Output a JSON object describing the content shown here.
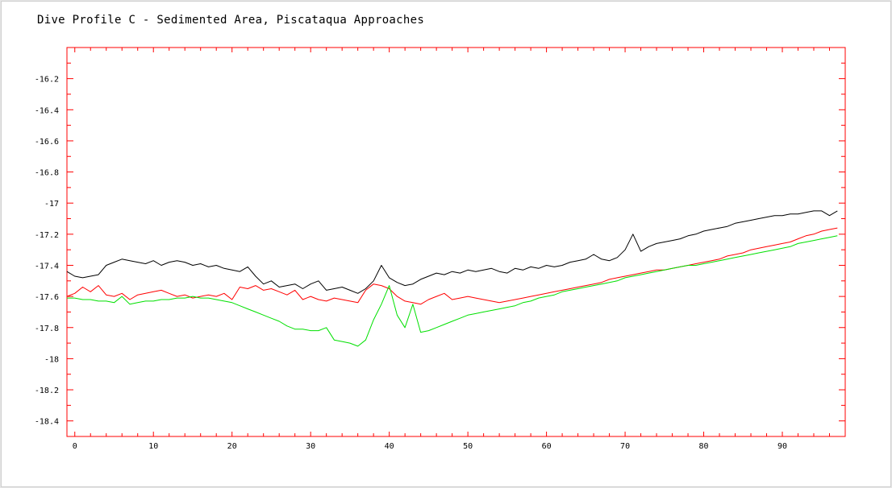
{
  "chart_data": {
    "type": "line",
    "title": "Dive Profile C - Sedimented Area, Piscataqua Approaches",
    "xlabel": "",
    "ylabel": "",
    "xlim": [
      -1,
      98
    ],
    "ylim": [
      -18.5,
      -16.0
    ],
    "x_ticks": [
      0,
      10,
      20,
      30,
      40,
      50,
      60,
      70,
      80,
      90
    ],
    "y_ticks": [
      -16.2,
      -16.4,
      -16.6,
      -16.8,
      -17,
      -17.2,
      -17.4,
      -17.6,
      -17.8,
      -18,
      -18.2,
      -18.4
    ],
    "x_tick_labels": [
      "0",
      "10",
      "20",
      "30",
      "40",
      "50",
      "60",
      "70",
      "80",
      "90"
    ],
    "y_tick_labels": [
      "-16.2",
      "-16.4",
      "-16.6",
      "-16.8",
      "-17",
      "-17.2",
      "-17.4",
      "-17.6",
      "-17.8",
      "-18",
      "-18.2",
      "-18.4"
    ],
    "grid": false,
    "series": [
      {
        "color": "#000000",
        "x": [
          -1,
          0,
          1,
          2,
          3,
          4,
          5,
          6,
          7,
          8,
          9,
          10,
          11,
          12,
          13,
          14,
          15,
          16,
          17,
          18,
          19,
          20,
          21,
          22,
          23,
          24,
          25,
          26,
          27,
          28,
          29,
          30,
          31,
          32,
          33,
          34,
          35,
          36,
          37,
          38,
          39,
          40,
          41,
          42,
          43,
          44,
          45,
          46,
          47,
          48,
          49,
          50,
          51,
          52,
          53,
          54,
          55,
          56,
          57,
          58,
          59,
          60,
          61,
          62,
          63,
          64,
          65,
          66,
          67,
          68,
          69,
          70,
          71,
          72,
          73,
          74,
          75,
          76,
          77,
          78,
          79,
          80,
          81,
          82,
          83,
          84,
          85,
          86,
          87,
          88,
          89,
          90,
          91,
          92,
          93,
          94,
          95,
          96,
          97
        ],
        "values": [
          -17.44,
          -17.47,
          -17.48,
          -17.47,
          -17.46,
          -17.4,
          -17.38,
          -17.36,
          -17.37,
          -17.38,
          -17.39,
          -17.37,
          -17.4,
          -17.38,
          -17.37,
          -17.38,
          -17.4,
          -17.39,
          -17.41,
          -17.4,
          -17.42,
          -17.43,
          -17.44,
          -17.41,
          -17.47,
          -17.52,
          -17.5,
          -17.54,
          -17.53,
          -17.52,
          -17.55,
          -17.52,
          -17.5,
          -17.56,
          -17.55,
          -17.54,
          -17.56,
          -17.58,
          -17.55,
          -17.5,
          -17.4,
          -17.48,
          -17.51,
          -17.53,
          -17.52,
          -17.49,
          -17.47,
          -17.45,
          -17.46,
          -17.44,
          -17.45,
          -17.43,
          -17.44,
          -17.43,
          -17.42,
          -17.44,
          -17.45,
          -17.42,
          -17.43,
          -17.41,
          -17.42,
          -17.4,
          -17.41,
          -17.4,
          -17.38,
          -17.37,
          -17.36,
          -17.33,
          -17.36,
          -17.37,
          -17.35,
          -17.3,
          -17.2,
          -17.31,
          -17.28,
          -17.26,
          -17.25,
          -17.24,
          -17.23,
          -17.21,
          -17.2,
          -17.18,
          -17.17,
          -17.16,
          -17.15,
          -17.13,
          -17.12,
          -17.11,
          -17.1,
          -17.09,
          -17.08,
          -17.08,
          -17.07,
          -17.07,
          -17.06,
          -17.05,
          -17.05,
          -17.08,
          -17.05
        ]
      },
      {
        "color": "#ff0000",
        "x": [
          -1,
          0,
          1,
          2,
          3,
          4,
          5,
          6,
          7,
          8,
          9,
          10,
          11,
          12,
          13,
          14,
          15,
          16,
          17,
          18,
          19,
          20,
          21,
          22,
          23,
          24,
          25,
          26,
          27,
          28,
          29,
          30,
          31,
          32,
          33,
          34,
          35,
          36,
          37,
          38,
          39,
          40,
          41,
          42,
          43,
          44,
          45,
          46,
          47,
          48,
          49,
          50,
          51,
          52,
          53,
          54,
          55,
          56,
          57,
          58,
          59,
          60,
          61,
          62,
          63,
          64,
          65,
          66,
          67,
          68,
          69,
          70,
          71,
          72,
          73,
          74,
          75,
          76,
          77,
          78,
          79,
          80,
          81,
          82,
          83,
          84,
          85,
          86,
          87,
          88,
          89,
          90,
          91,
          92,
          93,
          94,
          95,
          96,
          97
        ],
        "values": [
          -17.6,
          -17.58,
          -17.54,
          -17.57,
          -17.53,
          -17.59,
          -17.6,
          -17.58,
          -17.62,
          -17.59,
          -17.58,
          -17.57,
          -17.56,
          -17.58,
          -17.6,
          -17.59,
          -17.61,
          -17.6,
          -17.59,
          -17.6,
          -17.58,
          -17.62,
          -17.54,
          -17.55,
          -17.53,
          -17.56,
          -17.55,
          -17.57,
          -17.59,
          -17.56,
          -17.62,
          -17.6,
          -17.62,
          -17.63,
          -17.61,
          -17.62,
          -17.63,
          -17.64,
          -17.56,
          -17.52,
          -17.53,
          -17.55,
          -17.6,
          -17.63,
          -17.64,
          -17.65,
          -17.62,
          -17.6,
          -17.58,
          -17.62,
          -17.61,
          -17.6,
          -17.61,
          -17.62,
          -17.63,
          -17.64,
          -17.63,
          -17.62,
          -17.61,
          -17.6,
          -17.59,
          -17.58,
          -17.57,
          -17.56,
          -17.55,
          -17.54,
          -17.53,
          -17.52,
          -17.51,
          -17.49,
          -17.48,
          -17.47,
          -17.46,
          -17.45,
          -17.44,
          -17.43,
          -17.43,
          -17.42,
          -17.41,
          -17.4,
          -17.39,
          -17.38,
          -17.37,
          -17.36,
          -17.34,
          -17.33,
          -17.32,
          -17.3,
          -17.29,
          -17.28,
          -17.27,
          -17.26,
          -17.25,
          -17.23,
          -17.21,
          -17.2,
          -17.18,
          -17.17,
          -17.16
        ]
      },
      {
        "color": "#00e000",
        "x": [
          -1,
          0,
          1,
          2,
          3,
          4,
          5,
          6,
          7,
          8,
          9,
          10,
          11,
          12,
          13,
          14,
          15,
          16,
          17,
          18,
          19,
          20,
          21,
          22,
          23,
          24,
          25,
          26,
          27,
          28,
          29,
          30,
          31,
          32,
          33,
          34,
          35,
          36,
          37,
          38,
          39,
          40,
          41,
          42,
          43,
          44,
          45,
          46,
          47,
          48,
          49,
          50,
          51,
          52,
          53,
          54,
          55,
          56,
          57,
          58,
          59,
          60,
          61,
          62,
          63,
          64,
          65,
          66,
          67,
          68,
          69,
          70,
          71,
          72,
          73,
          74,
          75,
          76,
          77,
          78,
          79,
          80,
          81,
          82,
          83,
          84,
          85,
          86,
          87,
          88,
          89,
          90,
          91,
          92,
          93,
          94,
          95,
          96,
          97
        ],
        "values": [
          -17.61,
          -17.61,
          -17.62,
          -17.62,
          -17.63,
          -17.63,
          -17.64,
          -17.6,
          -17.65,
          -17.64,
          -17.63,
          -17.63,
          -17.62,
          -17.62,
          -17.61,
          -17.61,
          -17.6,
          -17.61,
          -17.61,
          -17.62,
          -17.63,
          -17.64,
          -17.66,
          -17.68,
          -17.7,
          -17.72,
          -17.74,
          -17.76,
          -17.79,
          -17.81,
          -17.81,
          -17.82,
          -17.82,
          -17.8,
          -17.88,
          -17.89,
          -17.9,
          -17.92,
          -17.88,
          -17.75,
          -17.65,
          -17.53,
          -17.72,
          -17.8,
          -17.65,
          -17.83,
          -17.82,
          -17.8,
          -17.78,
          -17.76,
          -17.74,
          -17.72,
          -17.71,
          -17.7,
          -17.69,
          -17.68,
          -17.67,
          -17.66,
          -17.64,
          -17.63,
          -17.61,
          -17.6,
          -17.59,
          -17.57,
          -17.56,
          -17.55,
          -17.54,
          -17.53,
          -17.52,
          -17.51,
          -17.5,
          -17.48,
          -17.47,
          -17.46,
          -17.45,
          -17.44,
          -17.43,
          -17.42,
          -17.41,
          -17.4,
          -17.4,
          -17.39,
          -17.38,
          -17.37,
          -17.36,
          -17.35,
          -17.34,
          -17.33,
          -17.32,
          -17.31,
          -17.3,
          -17.29,
          -17.28,
          -17.26,
          -17.25,
          -17.24,
          -17.23,
          -17.22,
          -17.21
        ]
      }
    ]
  }
}
